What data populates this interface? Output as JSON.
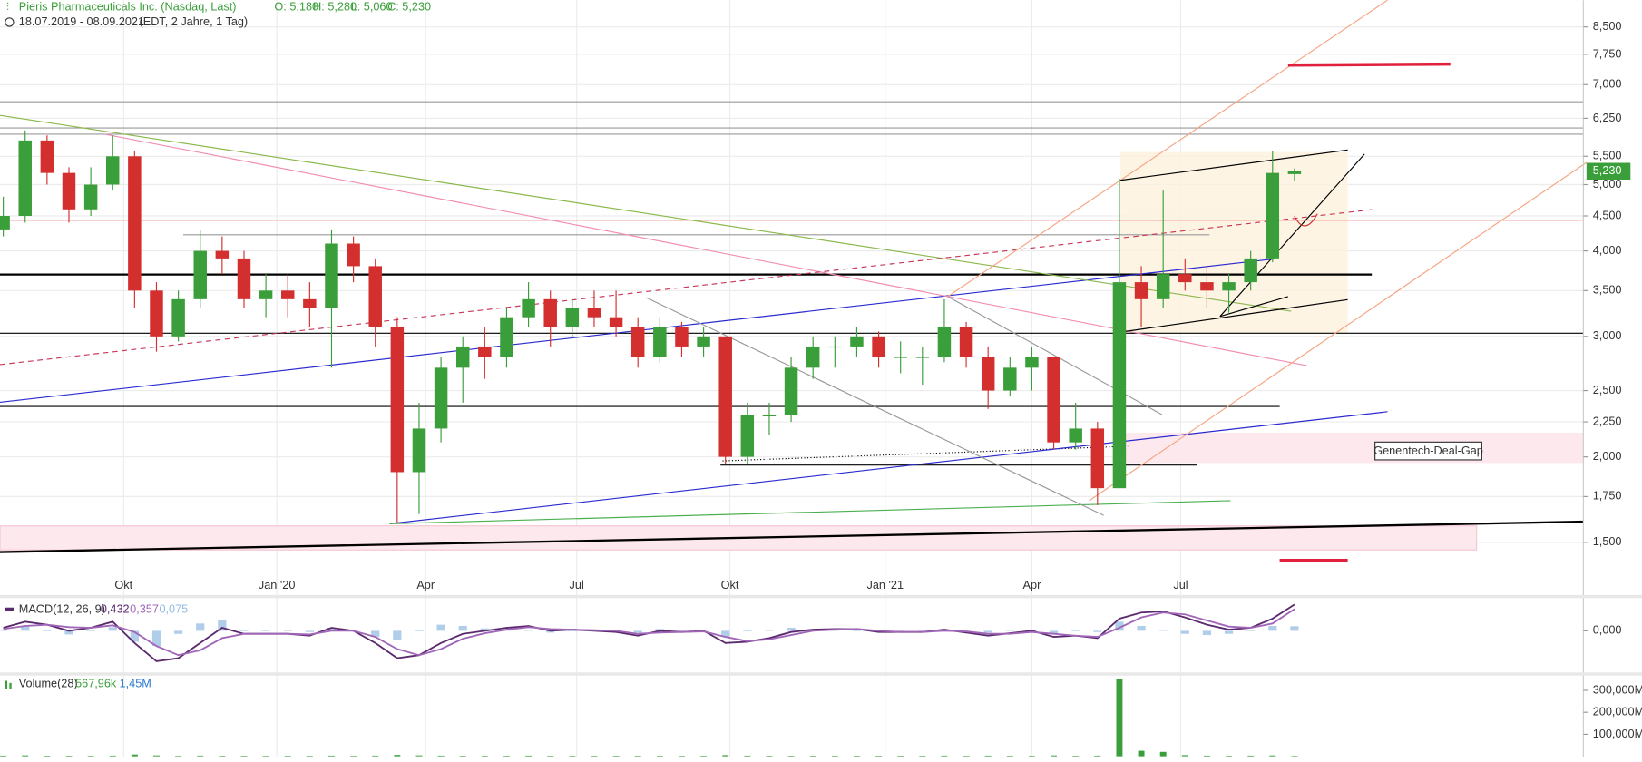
{
  "chart_data": {
    "type": "candlestick",
    "title": "Pieris Pharmaceuticals Inc. (Nasdaq, Last)",
    "readout": [
      {
        "value": 5.18,
        "label": "O: 5,180"
      },
      {
        "value": 5.28,
        "label": "H: 5,280"
      },
      {
        "value": 5.06,
        "label": "L: 5,060"
      },
      {
        "value": 5.23,
        "label": "C: 5,230"
      }
    ],
    "date_range": "18.07.2019 - 08.09.2021",
    "period": "(EDT, 2 Jahre, 1 Tag)",
    "log_scale": true,
    "grid": true,
    "up_color": "#3a9e3a",
    "down_color": "#d32f2f",
    "ylim": [
      1.27,
      9.3
    ],
    "yticks": [
      {
        "value": 1.5,
        "label": "1,500"
      },
      {
        "value": 1.75,
        "label": "1,750"
      },
      {
        "value": 2,
        "label": "2,000"
      },
      {
        "value": 2.25,
        "label": "2,250"
      },
      {
        "value": 2.5,
        "label": "2,500"
      },
      {
        "value": 3,
        "label": "3,000"
      },
      {
        "value": 3.5,
        "label": "3,500"
      },
      {
        "value": 4,
        "label": "4,000"
      },
      {
        "value": 4.5,
        "label": "4,500"
      },
      {
        "value": 5,
        "label": "5,000"
      },
      {
        "value": 5.5,
        "label": "5,500"
      },
      {
        "value": 6.25,
        "label": "6,250"
      },
      {
        "value": 7,
        "label": "7,000"
      },
      {
        "value": 7.75,
        "label": "7,750"
      },
      {
        "value": 8.5,
        "label": "8,500"
      }
    ],
    "xlim": [
      -0.15,
      72.2
    ],
    "xticks": [
      {
        "value": 5.5,
        "label": "Okt"
      },
      {
        "value": 12.5,
        "label": "Jan '20"
      },
      {
        "value": 19.3,
        "label": "Apr"
      },
      {
        "value": 26.2,
        "label": "Jul"
      },
      {
        "value": 33.2,
        "label": "Okt"
      },
      {
        "value": 40.3,
        "label": "Jan '21"
      },
      {
        "value": 47.0,
        "label": "Apr"
      },
      {
        "value": 53.8,
        "label": "Jul"
      }
    ],
    "last_price": {
      "value": 5.23,
      "label": "5,230"
    },
    "annotation": "Genentech-Deal-Gap",
    "open": [
      4.3,
      4.5,
      5.8,
      5.2,
      4.6,
      5.0,
      5.5,
      3.5,
      3.0,
      3.4,
      4.0,
      3.9,
      3.4,
      3.5,
      3.4,
      3.3,
      4.1,
      3.8,
      3.1,
      1.9,
      2.2,
      2.7,
      2.9,
      2.8,
      3.2,
      3.4,
      3.1,
      3.3,
      3.2,
      3.1,
      2.8,
      3.1,
      2.9,
      3.0,
      2.0,
      2.3,
      2.3,
      2.7,
      2.9,
      2.9,
      3.0,
      2.8,
      2.8,
      2.8,
      3.1,
      2.8,
      2.5,
      2.7,
      2.8,
      2.1,
      2.2,
      1.8,
      3.6,
      3.4,
      3.7,
      3.6,
      3.5,
      3.6,
      3.9,
      5.18
    ],
    "high": [
      4.8,
      6.0,
      5.9,
      5.3,
      5.3,
      5.9,
      5.6,
      3.6,
      3.5,
      4.3,
      4.2,
      4.0,
      3.7,
      3.7,
      3.6,
      4.3,
      4.2,
      3.9,
      3.2,
      2.4,
      2.8,
      3.0,
      3.1,
      3.3,
      3.6,
      3.5,
      3.4,
      3.5,
      3.5,
      3.2,
      3.2,
      3.15,
      3.1,
      3.0,
      2.4,
      2.4,
      2.8,
      3.0,
      3.0,
      3.1,
      3.05,
      2.95,
      2.9,
      3.4,
      3.15,
      2.9,
      2.8,
      2.9,
      2.8,
      2.4,
      2.25,
      5.1,
      3.8,
      4.9,
      3.9,
      3.8,
      3.7,
      4.0,
      5.6,
      5.28
    ],
    "low": [
      4.2,
      4.4,
      5.0,
      4.4,
      4.5,
      4.9,
      3.3,
      2.85,
      2.95,
      3.3,
      3.7,
      3.3,
      3.2,
      3.2,
      3.1,
      2.7,
      3.6,
      2.9,
      1.6,
      1.65,
      2.1,
      2.4,
      2.6,
      2.7,
      3.1,
      2.9,
      3.0,
      3.1,
      3.0,
      2.7,
      2.75,
      2.8,
      2.8,
      1.95,
      1.95,
      2.15,
      2.25,
      2.6,
      2.7,
      2.8,
      2.7,
      2.65,
      2.55,
      2.75,
      2.7,
      2.35,
      2.45,
      2.5,
      2.05,
      2.05,
      1.7,
      1.8,
      3.1,
      3.3,
      3.5,
      3.3,
      3.25,
      3.5,
      3.85,
      5.06
    ],
    "close": [
      4.5,
      5.8,
      5.2,
      4.6,
      5.0,
      5.5,
      3.5,
      3.0,
      3.4,
      4.0,
      3.9,
      3.4,
      3.5,
      3.4,
      3.3,
      4.1,
      3.8,
      3.1,
      1.9,
      2.2,
      2.7,
      2.9,
      2.8,
      3.2,
      3.4,
      3.1,
      3.3,
      3.2,
      3.1,
      2.8,
      3.1,
      2.9,
      3.0,
      2.0,
      2.3,
      2.3,
      2.7,
      2.9,
      2.9,
      3.0,
      2.8,
      2.8,
      2.8,
      3.1,
      2.8,
      2.5,
      2.7,
      2.8,
      2.1,
      2.2,
      1.8,
      3.6,
      3.4,
      3.7,
      3.6,
      3.5,
      3.6,
      3.9,
      5.2,
      5.23
    ],
    "macd": {
      "title": "MACD(12, 26, 9)",
      "ylim": [
        -0.65,
        0.52
      ],
      "yticks": [
        {
          "value": 0,
          "label": "0,000"
        }
      ],
      "series": [
        {
          "name": "MACD",
          "color": "#5b2a6e",
          "values": [
            0.05,
            0.15,
            0.1,
            0,
            0.05,
            0.15,
            -0.2,
            -0.5,
            -0.45,
            -0.2,
            0.05,
            -0.05,
            -0.05,
            -0.05,
            -0.08,
            0.05,
            0,
            -0.2,
            -0.45,
            -0.4,
            -0.2,
            -0.05,
            0,
            0.05,
            0.08,
            0,
            0.02,
            0,
            -0.02,
            -0.08,
            0,
            -0.02,
            0,
            -0.2,
            -0.18,
            -0.12,
            -0.02,
            0.02,
            0.03,
            0.03,
            -0.02,
            -0.02,
            -0.02,
            0.02,
            -0.03,
            -0.08,
            -0.04,
            0,
            -0.1,
            -0.08,
            -0.12,
            0.2,
            0.3,
            0.32,
            0.22,
            0.1,
            0.02,
            0.05,
            0.2,
            0.432
          ]
        },
        {
          "name": "Signal",
          "color": "#a066b8",
          "values": [
            0.03,
            0.08,
            0.1,
            0.06,
            0.05,
            0.09,
            -0.02,
            -0.25,
            -0.4,
            -0.32,
            -0.12,
            -0.05,
            -0.05,
            -0.05,
            -0.06,
            0,
            0,
            -0.1,
            -0.3,
            -0.4,
            -0.3,
            -0.13,
            -0.04,
            0.02,
            0.06,
            0.03,
            0.02,
            0.01,
            0,
            -0.05,
            -0.03,
            -0.02,
            -0.01,
            -0.1,
            -0.17,
            -0.14,
            -0.07,
            0,
            0.02,
            0.03,
            0,
            -0.02,
            -0.02,
            0,
            -0.01,
            -0.05,
            -0.05,
            -0.02,
            -0.05,
            -0.08,
            -0.1,
            0.05,
            0.22,
            0.3,
            0.27,
            0.17,
            0.07,
            0.05,
            0.12,
            0.357
          ]
        },
        {
          "name": "Histogramm",
          "color": "#8fb8e0",
          "values": [
            0.02,
            0.07,
            0,
            -0.06,
            0,
            0.06,
            -0.18,
            -0.25,
            -0.05,
            0.12,
            0.17,
            0,
            0,
            0,
            -0.02,
            0.05,
            0,
            -0.1,
            -0.15,
            0,
            0.1,
            0.08,
            0.04,
            0.03,
            0.02,
            -0.03,
            0,
            -0.01,
            -0.02,
            -0.03,
            0.03,
            0,
            0.01,
            -0.1,
            -0.01,
            0.02,
            0.05,
            0.02,
            0.01,
            0,
            -0.02,
            0,
            0,
            0.02,
            -0.02,
            -0.03,
            0.01,
            0.02,
            -0.05,
            0,
            -0.02,
            0.15,
            0.08,
            0.02,
            -0.05,
            -0.07,
            -0.05,
            0,
            0.08,
            0.075
          ]
        }
      ],
      "readout": [
        {
          "value": 0.432,
          "label": "0,432"
        },
        {
          "value": 0.357,
          "label": "0,357"
        },
        {
          "value": 0.075,
          "label": "0,075"
        }
      ]
    },
    "volume": {
      "title": "Volume(28)",
      "color": "#3a9e3a",
      "ylim": [
        0,
        367
      ],
      "yticks": [
        {
          "value": 100,
          "label": "100,000M"
        },
        {
          "value": 200,
          "label": "200,000M"
        },
        {
          "value": 300,
          "label": "300,000M"
        }
      ],
      "values": [
        3,
        4,
        2,
        2,
        2,
        3,
        8,
        4,
        2,
        3,
        2,
        2,
        2,
        2,
        2,
        3,
        2,
        3,
        6,
        4,
        3,
        2,
        2,
        2,
        3,
        2,
        2,
        2,
        2,
        2,
        2,
        2,
        2,
        5,
        3,
        2,
        2,
        2,
        2,
        2,
        2,
        2,
        2,
        3,
        2,
        3,
        2,
        2,
        4,
        2,
        3,
        350,
        25,
        20,
        5,
        3,
        2,
        3,
        4,
        0.56796
      ],
      "readout": [
        {
          "value": 0.56796,
          "label": "567,96k"
        },
        {
          "value": 1.45,
          "label": "1,45M"
        }
      ]
    }
  }
}
